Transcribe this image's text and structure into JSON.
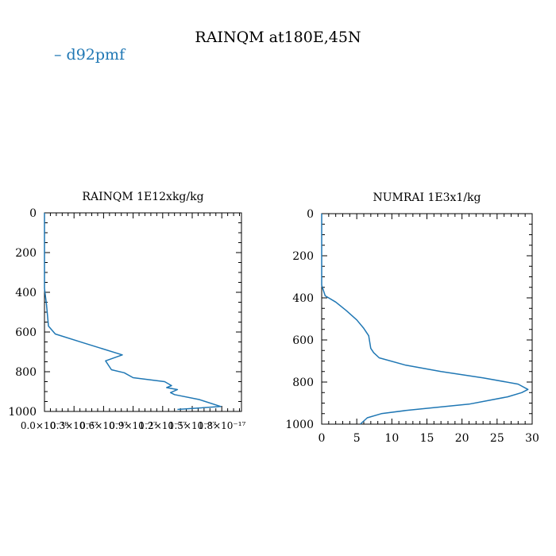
{
  "figure": {
    "title": "RAINQM at180E,45N",
    "legend": [
      {
        "label": "d92pmf",
        "color": "#1f77b4"
      }
    ]
  },
  "chart_data": [
    {
      "type": "line",
      "title": "RAINQM  1E12xkg/kg",
      "xlim": [
        0,
        2e-17
      ],
      "ylim": [
        1000,
        0
      ],
      "y_inverted": true,
      "xticks": [
        0,
        3e-18,
        6e-18,
        9e-18,
        1.2e-17,
        1.5e-17,
        1.8e-17
      ],
      "xtick_labels": [
        "0.0×10⁻¹⁸",
        "0.3×10⁻¹⁷",
        "0.6×10⁻¹⁷",
        "0.9×10⁻¹⁷",
        "1.2×10⁻¹⁷",
        "1.5×10⁻¹⁷",
        "1.8×10⁻¹⁷"
      ],
      "yticks": [
        0,
        200,
        400,
        600,
        800,
        1000
      ],
      "ytick_labels": [
        "0",
        "200",
        "400",
        "600",
        "800",
        "1000"
      ],
      "series": [
        {
          "name": "d92pmf",
          "color": "#1f77b4",
          "x": [
            0,
            0,
            2e-19,
            4e-19,
            1.1e-18,
            4e-18,
            7.9e-18,
            6.2e-18,
            6.8e-18,
            8.1e-18,
            9e-18,
            1.22e-17,
            1.29e-17,
            1.24e-17,
            1.35e-17,
            1.28e-17,
            1.32e-17,
            1.57e-17,
            1.79e-17,
            1.35e-17
          ],
          "y": [
            0,
            380,
            460,
            570,
            610,
            655,
            715,
            745,
            790,
            805,
            830,
            850,
            870,
            880,
            890,
            905,
            915,
            940,
            975,
            990
          ]
        }
      ]
    },
    {
      "type": "line",
      "title": "NUMRAI  1E3x1/kg",
      "xlim": [
        0,
        30
      ],
      "ylim": [
        1000,
        0
      ],
      "y_inverted": true,
      "xticks": [
        0,
        5,
        10,
        15,
        20,
        25,
        30
      ],
      "xtick_labels": [
        "0",
        "5",
        "10",
        "15",
        "20",
        "25",
        "30"
      ],
      "yticks": [
        0,
        200,
        400,
        600,
        800,
        1000
      ],
      "ytick_labels": [
        "0",
        "200",
        "400",
        "600",
        "800",
        "1000"
      ],
      "series": [
        {
          "name": "d92pmf",
          "color": "#1f77b4",
          "x": [
            0,
            0,
            0.5,
            2.0,
            3.5,
            5.0,
            6.0,
            6.7,
            7.0,
            7.4,
            8.2,
            12,
            17,
            23,
            28,
            29.4,
            28.5,
            26.5,
            21,
            12,
            8.5,
            6.5,
            5.5
          ],
          "y": [
            0,
            340,
            390,
            420,
            460,
            505,
            545,
            580,
            640,
            660,
            685,
            720,
            750,
            780,
            810,
            835,
            850,
            870,
            905,
            935,
            950,
            970,
            1000
          ]
        }
      ]
    }
  ]
}
